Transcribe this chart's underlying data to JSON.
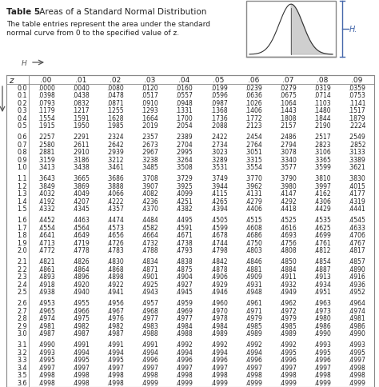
{
  "title_bold": "Table 5",
  "title_rest": " Areas of a Standard Normal Distribution",
  "subtitle1": "The table entries represent the area under the standard",
  "subtitle2": "normal curve from 0 to the specified value of z.",
  "col_headers": [
    ".00",
    ".01",
    ".02",
    ".03",
    ".04",
    ".05",
    ".06",
    ".07",
    ".08",
    ".09"
  ],
  "z_values": [
    "0.0",
    "0.1",
    "0.2",
    "0.3",
    "0.4",
    "0.5",
    "0.6",
    "0.7",
    "0.8",
    "0.9",
    "1.0",
    "1.1",
    "1.2",
    "1.3",
    "1.4",
    "1.5",
    "1.6",
    "1.7",
    "1.8",
    "1.9",
    "2.0",
    "2.1",
    "2.2",
    "2.3",
    "2.4",
    "2.5",
    "2.6",
    "2.7",
    "2.8",
    "2.9",
    "3.0",
    "3.1",
    "3.2",
    "3.3",
    "3.4",
    "3.5",
    "3.6"
  ],
  "table_data": [
    [
      "0000",
      "0040",
      "0080",
      "0120",
      "0160",
      "0199",
      "0239",
      "0279",
      "0319",
      "0359"
    ],
    [
      "0398",
      "0438",
      "0478",
      "0517",
      "0557",
      "0596",
      "0636",
      "0675",
      "0714",
      "0753"
    ],
    [
      "0793",
      "0832",
      "0871",
      "0910",
      "0948",
      "0987",
      "1026",
      "1064",
      "1103",
      "1141"
    ],
    [
      "1179",
      "1217",
      "1255",
      "1293",
      "1331",
      "1368",
      "1406",
      "1443",
      "1480",
      "1517"
    ],
    [
      "1554",
      "1591",
      "1628",
      "1664",
      "1700",
      "1736",
      "1772",
      "1808",
      "1844",
      "1879"
    ],
    [
      "1915",
      "1950",
      "1985",
      "2019",
      "2054",
      "2088",
      "2123",
      "2157",
      "2190",
      "2224"
    ],
    [
      "2257",
      "2291",
      "2324",
      "2357",
      "2389",
      "2422",
      "2454",
      "2486",
      "2517",
      "2549"
    ],
    [
      "2580",
      "2611",
      "2642",
      "2673",
      "2704",
      "2734",
      "2764",
      "2794",
      "2823",
      "2852"
    ],
    [
      "2881",
      "2910",
      "2939",
      "2967",
      "2995",
      "3023",
      "3051",
      "3078",
      "3106",
      "3133"
    ],
    [
      "3159",
      "3186",
      "3212",
      "3238",
      "3264",
      "3289",
      "3315",
      "3340",
      "3365",
      "3389"
    ],
    [
      "3413",
      "3438",
      "3461",
      "3485",
      "3508",
      "3531",
      "3554",
      "3577",
      "3599",
      "3621"
    ],
    [
      "3643",
      "3665",
      "3686",
      "3708",
      "3729",
      "3749",
      "3770",
      "3790",
      "3810",
      "3830"
    ],
    [
      "3849",
      "3869",
      "3888",
      "3907",
      "3925",
      "3944",
      "3962",
      "3980",
      "3997",
      "4015"
    ],
    [
      "4032",
      "4049",
      "4066",
      "4082",
      "4099",
      "4115",
      "4131",
      "4147",
      "4162",
      "4177"
    ],
    [
      "4192",
      "4207",
      "4222",
      "4236",
      "4251",
      "4265",
      "4279",
      "4292",
      "4306",
      "4319"
    ],
    [
      "4332",
      "4345",
      "4357",
      "4370",
      "4382",
      "4394",
      "4406",
      "4418",
      "4429",
      "4441"
    ],
    [
      "4452",
      "4463",
      "4474",
      "4484",
      "4495",
      "4505",
      "4515",
      "4525",
      "4535",
      "4545"
    ],
    [
      "4554",
      "4564",
      "4573",
      "4582",
      "4591",
      "4599",
      "4608",
      "4616",
      "4625",
      "4633"
    ],
    [
      "4641",
      "4649",
      "4656",
      "4664",
      "4671",
      "4678",
      "4686",
      "4693",
      "4699",
      "4706"
    ],
    [
      "4713",
      "4719",
      "4726",
      "4732",
      "4738",
      "4744",
      "4750",
      "4756",
      "4761",
      "4767"
    ],
    [
      "4772",
      "4778",
      "4783",
      "4788",
      "4793",
      "4798",
      "4803",
      "4808",
      "4812",
      "4817"
    ],
    [
      "4821",
      "4826",
      "4830",
      "4834",
      "4838",
      "4842",
      "4846",
      "4850",
      "4854",
      "4857"
    ],
    [
      "4861",
      "4864",
      "4868",
      "4871",
      "4875",
      "4878",
      "4881",
      "4884",
      "4887",
      "4890"
    ],
    [
      "4893",
      "4896",
      "4898",
      "4901",
      "4904",
      "4906",
      "4909",
      "4911",
      "4913",
      "4916"
    ],
    [
      "4918",
      "4920",
      "4922",
      "4925",
      "4927",
      "4929",
      "4931",
      "4932",
      "4934",
      "4936"
    ],
    [
      "4938",
      "4940",
      "4941",
      "4943",
      "4945",
      "4946",
      "4948",
      "4949",
      "4951",
      "4952"
    ],
    [
      "4953",
      "4955",
      "4956",
      "4957",
      "4959",
      "4960",
      "4961",
      "4962",
      "4963",
      "4964"
    ],
    [
      "4965",
      "4966",
      "4967",
      "4968",
      "4969",
      "4970",
      "4971",
      "4972",
      "4973",
      "4974"
    ],
    [
      "4974",
      "4975",
      "4976",
      "4977",
      "4977",
      "4978",
      "4979",
      "4979",
      "4980",
      "4981"
    ],
    [
      "4981",
      "4982",
      "4982",
      "4983",
      "4984",
      "4984",
      "4985",
      "4985",
      "4986",
      "4986"
    ],
    [
      "4987",
      "4987",
      "4987",
      "4988",
      "4988",
      "4989",
      "4989",
      "4989",
      "4990",
      "4990"
    ],
    [
      "4990",
      "4991",
      "4991",
      "4991",
      "4992",
      "4992",
      "4992",
      "4992",
      "4993",
      "4993"
    ],
    [
      "4993",
      "4994",
      "4994",
      "4994",
      "4994",
      "4994",
      "4994",
      "4995",
      "4995",
      "4995"
    ],
    [
      "4995",
      "4995",
      "4995",
      "4996",
      "4996",
      "4996",
      "4996",
      "4996",
      "4996",
      "4997"
    ],
    [
      "4997",
      "4997",
      "4997",
      "4997",
      "4997",
      "4997",
      "4997",
      "4997",
      "4997",
      "4998"
    ],
    [
      "4998",
      "4998",
      "4998",
      "4998",
      "4998",
      "4998",
      "4998",
      "4998",
      "4998",
      "4998"
    ],
    [
      "4998",
      "4998",
      "4998",
      "4999",
      "4999",
      "4999",
      "4999",
      "4999",
      "4999",
      "4999"
    ]
  ],
  "group_breaks": [
    5,
    10,
    15,
    20,
    25,
    30
  ],
  "bg_color": "#ffffff",
  "text_color": "#222222",
  "line_color": "#888888",
  "arrow_color": "#4466aa",
  "inset_box_color": "#888888"
}
